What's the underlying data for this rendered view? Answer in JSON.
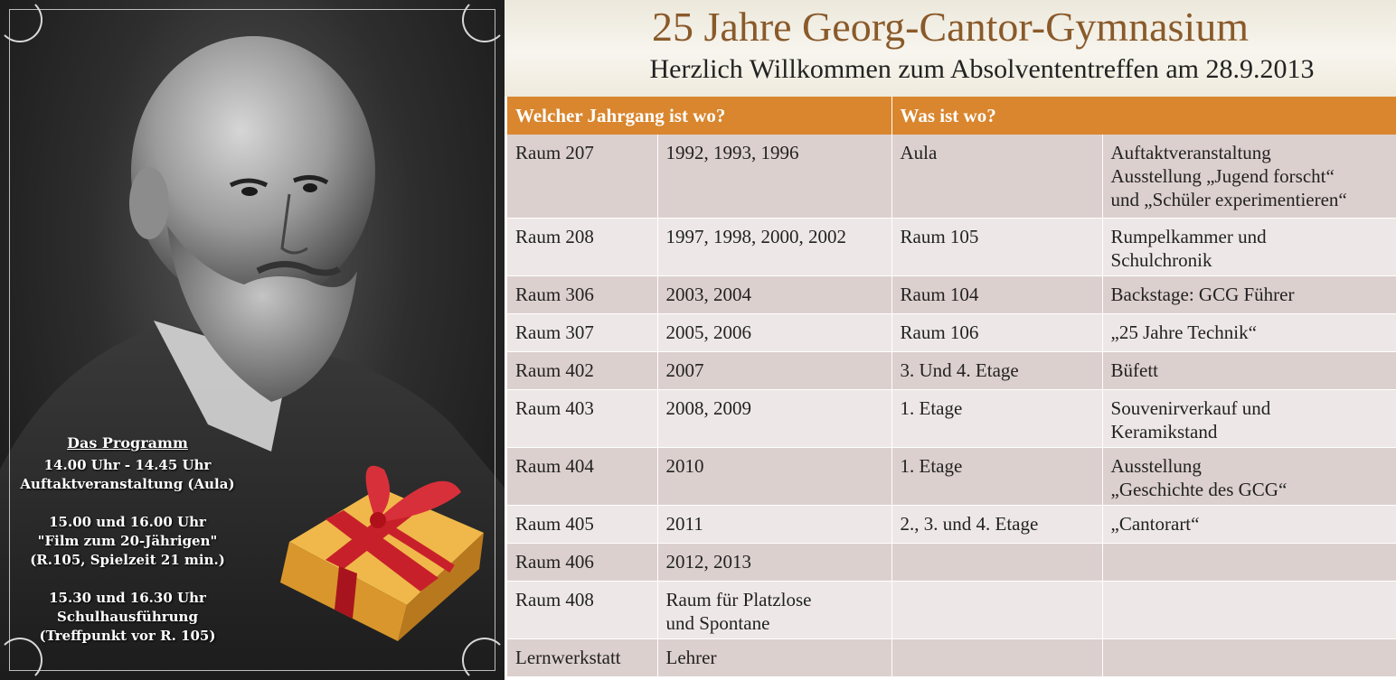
{
  "program": {
    "title": "Das Programm",
    "items": [
      {
        "time": "14.00 Uhr - 14.45 Uhr",
        "lines": [
          "Auftaktveranstaltung (Aula)"
        ]
      },
      {
        "time": "15.00 und 16.00 Uhr",
        "lines": [
          "\"Film zum 20-Jährigen\"",
          "(R.105, Spielzeit 21 min.)"
        ]
      },
      {
        "time": "15.30 und 16.30 Uhr",
        "lines": [
          "Schulhausführung",
          "(Treffpunkt vor R. 105)"
        ]
      }
    ]
  },
  "header": {
    "title": "25 Jahre Georg-Cantor-Gymnasium",
    "subtitle": "Herzlich Willkommen zum Absolvententreffen am 28.9.2013"
  },
  "table": {
    "col_headers": [
      "Welcher Jahrgang ist wo?",
      "Was ist wo?"
    ],
    "rows": [
      {
        "room": "Raum 207",
        "years": [
          "1992, 1993, 1996"
        ],
        "where": "Aula",
        "what": [
          "Auftaktveranstaltung",
          "Ausstellung „Jugend forscht“",
          "und „Schüler experimentieren“"
        ]
      },
      {
        "room": "Raum 208",
        "years": [
          "1997, 1998, 2000, 2002"
        ],
        "where": "Raum 105",
        "what": [
          "Rumpelkammer und",
          "Schulchronik"
        ]
      },
      {
        "room": "Raum 306",
        "years": [
          "2003, 2004"
        ],
        "where": "Raum 104",
        "what": [
          "Backstage: GCG Führer"
        ]
      },
      {
        "room": "Raum 307",
        "years": [
          "2005, 2006"
        ],
        "where": "Raum 106",
        "what": [
          "„25 Jahre Technik“"
        ]
      },
      {
        "room": "Raum 402",
        "years": [
          "2007"
        ],
        "where": "3. Und 4. Etage",
        "what": [
          "Büfett"
        ]
      },
      {
        "room": "Raum 403",
        "years": [
          "2008, 2009"
        ],
        "where": "1. Etage",
        "what": [
          "Souvenirverkauf und",
          "Keramikstand"
        ]
      },
      {
        "room": "Raum 404",
        "years": [
          "2010"
        ],
        "where": "1. Etage",
        "what": [
          "Ausstellung",
          "„Geschichte des GCG“"
        ]
      },
      {
        "room": "Raum 405",
        "years": [
          "2011"
        ],
        "where": "2., 3. und 4. Etage",
        "what": [
          "„Cantorart“"
        ]
      },
      {
        "room": "Raum 406",
        "years": [
          "2012, 2013"
        ],
        "where": "",
        "what": [
          ""
        ]
      },
      {
        "room": "Raum 408",
        "years": [
          "Raum für Platzlose",
          "und Spontane"
        ],
        "where": "",
        "what": [
          ""
        ]
      },
      {
        "room": "Lernwerkstatt",
        "years": [
          "Lehrer"
        ],
        "where": "",
        "what": [
          ""
        ]
      }
    ]
  },
  "colors": {
    "accent": "#d9862e",
    "title": "#8a5a2a",
    "row_dark": "#dcd0ce",
    "row_light": "#ede8e7"
  }
}
